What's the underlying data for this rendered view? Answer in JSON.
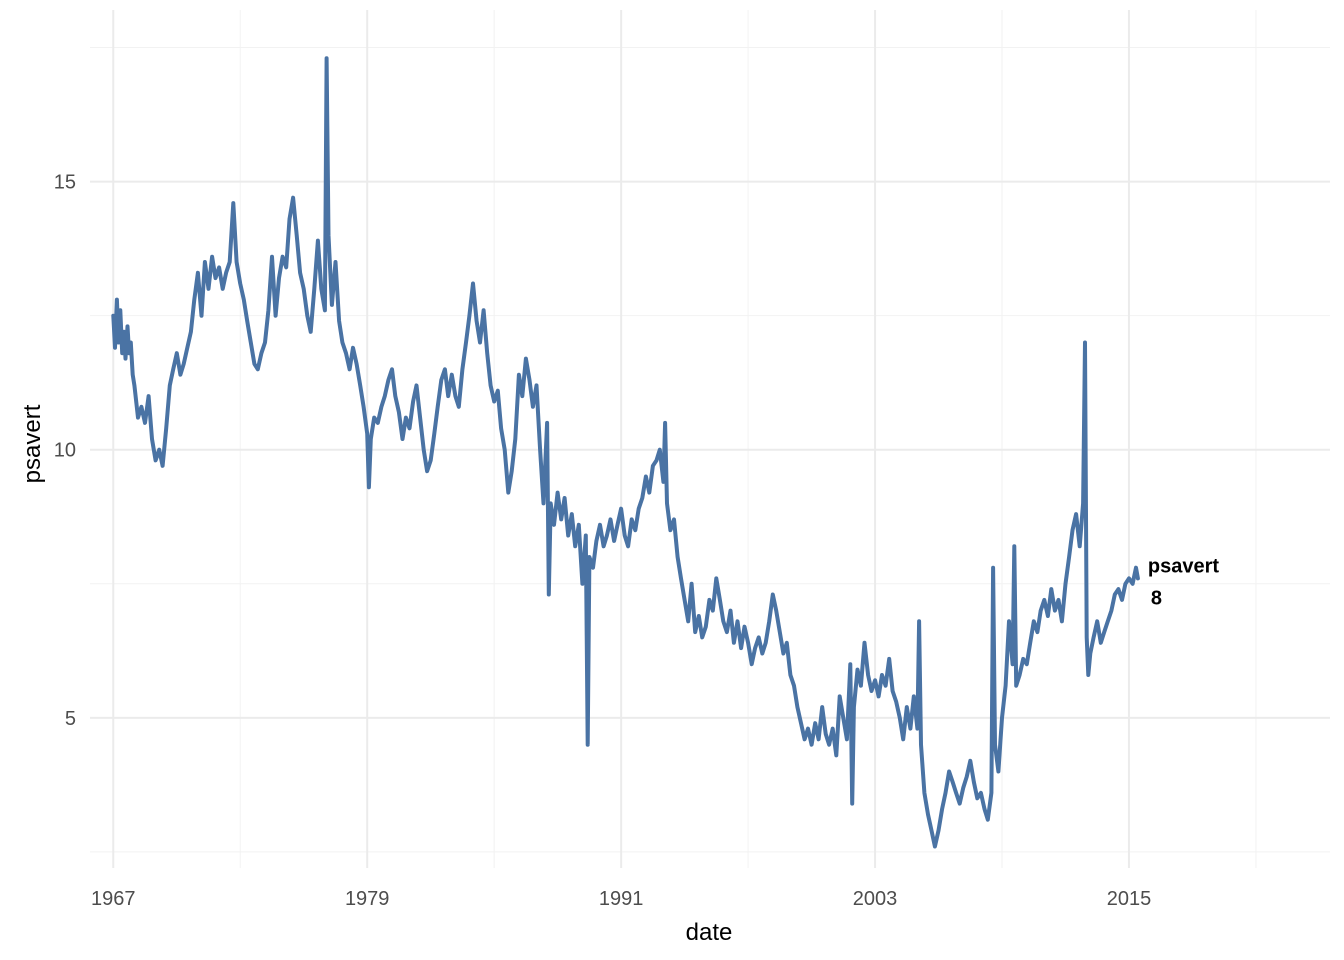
{
  "chart_data": {
    "type": "line",
    "xlabel": "date",
    "ylabel": "psavert",
    "x_ticks": [
      "1967",
      "1979",
      "1991",
      "2003",
      "2015"
    ],
    "y_ticks": [
      5,
      10,
      15
    ],
    "xlim": [
      1965.9,
      2024.5
    ],
    "ylim": [
      2.2,
      18.2
    ],
    "grid": true,
    "line_color": "#4a73a4",
    "series": [
      {
        "name": "psavert",
        "end_label": {
          "name": "psavert",
          "value": "8"
        },
        "points": [
          [
            1967.0,
            12.5
          ],
          [
            1967.08,
            11.9
          ],
          [
            1967.17,
            12.8
          ],
          [
            1967.25,
            12.0
          ],
          [
            1967.33,
            12.6
          ],
          [
            1967.42,
            11.8
          ],
          [
            1967.5,
            12.2
          ],
          [
            1967.58,
            11.7
          ],
          [
            1967.67,
            12.3
          ],
          [
            1967.75,
            11.8
          ],
          [
            1967.83,
            12.0
          ],
          [
            1967.92,
            11.4
          ],
          [
            1968.0,
            11.2
          ],
          [
            1968.17,
            10.6
          ],
          [
            1968.33,
            10.8
          ],
          [
            1968.5,
            10.5
          ],
          [
            1968.67,
            11.0
          ],
          [
            1968.83,
            10.2
          ],
          [
            1969.0,
            9.8
          ],
          [
            1969.17,
            10.0
          ],
          [
            1969.33,
            9.7
          ],
          [
            1969.5,
            10.4
          ],
          [
            1969.67,
            11.2
          ],
          [
            1969.83,
            11.5
          ],
          [
            1970.0,
            11.8
          ],
          [
            1970.17,
            11.4
          ],
          [
            1970.33,
            11.6
          ],
          [
            1970.5,
            11.9
          ],
          [
            1970.67,
            12.2
          ],
          [
            1970.83,
            12.8
          ],
          [
            1971.0,
            13.3
          ],
          [
            1971.17,
            12.5
          ],
          [
            1971.33,
            13.5
          ],
          [
            1971.5,
            13.0
          ],
          [
            1971.67,
            13.6
          ],
          [
            1971.83,
            13.2
          ],
          [
            1972.0,
            13.4
          ],
          [
            1972.17,
            13.0
          ],
          [
            1972.33,
            13.3
          ],
          [
            1972.5,
            13.5
          ],
          [
            1972.67,
            14.6
          ],
          [
            1972.83,
            13.5
          ],
          [
            1973.0,
            13.1
          ],
          [
            1973.17,
            12.8
          ],
          [
            1973.33,
            12.4
          ],
          [
            1973.5,
            12.0
          ],
          [
            1973.67,
            11.6
          ],
          [
            1973.83,
            11.5
          ],
          [
            1974.0,
            11.8
          ],
          [
            1974.17,
            12.0
          ],
          [
            1974.33,
            12.6
          ],
          [
            1974.5,
            13.6
          ],
          [
            1974.67,
            12.5
          ],
          [
            1974.83,
            13.2
          ],
          [
            1975.0,
            13.6
          ],
          [
            1975.17,
            13.4
          ],
          [
            1975.33,
            14.3
          ],
          [
            1975.5,
            14.7
          ],
          [
            1975.67,
            14.0
          ],
          [
            1975.83,
            13.3
          ],
          [
            1976.0,
            13.0
          ],
          [
            1976.17,
            12.5
          ],
          [
            1976.33,
            12.2
          ],
          [
            1976.5,
            13.0
          ],
          [
            1976.67,
            13.9
          ],
          [
            1976.83,
            13.0
          ],
          [
            1977.0,
            12.6
          ],
          [
            1977.08,
            17.3
          ],
          [
            1977.17,
            14.0
          ],
          [
            1977.33,
            12.7
          ],
          [
            1977.5,
            13.5
          ],
          [
            1977.67,
            12.4
          ],
          [
            1977.83,
            12.0
          ],
          [
            1978.0,
            11.8
          ],
          [
            1978.17,
            11.5
          ],
          [
            1978.33,
            11.9
          ],
          [
            1978.5,
            11.6
          ],
          [
            1978.67,
            11.2
          ],
          [
            1978.83,
            10.8
          ],
          [
            1979.0,
            10.3
          ],
          [
            1979.08,
            9.3
          ],
          [
            1979.17,
            10.2
          ],
          [
            1979.33,
            10.6
          ],
          [
            1979.5,
            10.5
          ],
          [
            1979.67,
            10.8
          ],
          [
            1979.83,
            11.0
          ],
          [
            1980.0,
            11.3
          ],
          [
            1980.17,
            11.5
          ],
          [
            1980.33,
            11.0
          ],
          [
            1980.5,
            10.7
          ],
          [
            1980.67,
            10.2
          ],
          [
            1980.83,
            10.6
          ],
          [
            1981.0,
            10.4
          ],
          [
            1981.17,
            10.9
          ],
          [
            1981.33,
            11.2
          ],
          [
            1981.5,
            10.6
          ],
          [
            1981.67,
            10.0
          ],
          [
            1981.83,
            9.6
          ],
          [
            1982.0,
            9.8
          ],
          [
            1982.17,
            10.3
          ],
          [
            1982.33,
            10.8
          ],
          [
            1982.5,
            11.3
          ],
          [
            1982.67,
            11.5
          ],
          [
            1982.83,
            11.0
          ],
          [
            1983.0,
            11.4
          ],
          [
            1983.17,
            11.0
          ],
          [
            1983.33,
            10.8
          ],
          [
            1983.5,
            11.5
          ],
          [
            1983.67,
            12.0
          ],
          [
            1983.83,
            12.5
          ],
          [
            1984.0,
            13.1
          ],
          [
            1984.17,
            12.4
          ],
          [
            1984.33,
            12.0
          ],
          [
            1984.5,
            12.6
          ],
          [
            1984.67,
            11.8
          ],
          [
            1984.83,
            11.2
          ],
          [
            1985.0,
            10.9
          ],
          [
            1985.17,
            11.1
          ],
          [
            1985.33,
            10.4
          ],
          [
            1985.5,
            10.0
          ],
          [
            1985.67,
            9.2
          ],
          [
            1985.83,
            9.6
          ],
          [
            1986.0,
            10.2
          ],
          [
            1986.17,
            11.4
          ],
          [
            1986.33,
            11.0
          ],
          [
            1986.5,
            11.7
          ],
          [
            1986.67,
            11.3
          ],
          [
            1986.83,
            10.8
          ],
          [
            1987.0,
            11.2
          ],
          [
            1987.17,
            10.0
          ],
          [
            1987.33,
            9.0
          ],
          [
            1987.5,
            10.5
          ],
          [
            1987.58,
            7.3
          ],
          [
            1987.67,
            9.0
          ],
          [
            1987.83,
            8.6
          ],
          [
            1988.0,
            9.2
          ],
          [
            1988.17,
            8.7
          ],
          [
            1988.33,
            9.1
          ],
          [
            1988.5,
            8.4
          ],
          [
            1988.67,
            8.8
          ],
          [
            1988.83,
            8.2
          ],
          [
            1989.0,
            8.6
          ],
          [
            1989.17,
            7.5
          ],
          [
            1989.33,
            8.4
          ],
          [
            1989.42,
            4.5
          ],
          [
            1989.5,
            8.0
          ],
          [
            1989.67,
            7.8
          ],
          [
            1989.83,
            8.3
          ],
          [
            1990.0,
            8.6
          ],
          [
            1990.17,
            8.2
          ],
          [
            1990.33,
            8.4
          ],
          [
            1990.5,
            8.7
          ],
          [
            1990.67,
            8.3
          ],
          [
            1990.83,
            8.6
          ],
          [
            1991.0,
            8.9
          ],
          [
            1991.17,
            8.4
          ],
          [
            1991.33,
            8.2
          ],
          [
            1991.5,
            8.7
          ],
          [
            1991.67,
            8.5
          ],
          [
            1991.83,
            8.9
          ],
          [
            1992.0,
            9.1
          ],
          [
            1992.17,
            9.5
          ],
          [
            1992.33,
            9.2
          ],
          [
            1992.5,
            9.7
          ],
          [
            1992.67,
            9.8
          ],
          [
            1992.83,
            10.0
          ],
          [
            1993.0,
            9.4
          ],
          [
            1993.08,
            10.5
          ],
          [
            1993.17,
            9.0
          ],
          [
            1993.33,
            8.5
          ],
          [
            1993.5,
            8.7
          ],
          [
            1993.67,
            8.0
          ],
          [
            1993.83,
            7.6
          ],
          [
            1994.0,
            7.2
          ],
          [
            1994.17,
            6.8
          ],
          [
            1994.33,
            7.5
          ],
          [
            1994.5,
            6.6
          ],
          [
            1994.67,
            6.9
          ],
          [
            1994.83,
            6.5
          ],
          [
            1995.0,
            6.7
          ],
          [
            1995.17,
            7.2
          ],
          [
            1995.33,
            7.0
          ],
          [
            1995.5,
            7.6
          ],
          [
            1995.67,
            7.2
          ],
          [
            1995.83,
            6.8
          ],
          [
            1996.0,
            6.6
          ],
          [
            1996.17,
            7.0
          ],
          [
            1996.33,
            6.4
          ],
          [
            1996.5,
            6.8
          ],
          [
            1996.67,
            6.3
          ],
          [
            1996.83,
            6.7
          ],
          [
            1997.0,
            6.4
          ],
          [
            1997.17,
            6.0
          ],
          [
            1997.33,
            6.3
          ],
          [
            1997.5,
            6.5
          ],
          [
            1997.67,
            6.2
          ],
          [
            1997.83,
            6.4
          ],
          [
            1998.0,
            6.8
          ],
          [
            1998.17,
            7.3
          ],
          [
            1998.33,
            7.0
          ],
          [
            1998.5,
            6.6
          ],
          [
            1998.67,
            6.2
          ],
          [
            1998.83,
            6.4
          ],
          [
            1999.0,
            5.8
          ],
          [
            1999.17,
            5.6
          ],
          [
            1999.33,
            5.2
          ],
          [
            1999.5,
            4.9
          ],
          [
            1999.67,
            4.6
          ],
          [
            1999.83,
            4.8
          ],
          [
            2000.0,
            4.5
          ],
          [
            2000.17,
            4.9
          ],
          [
            2000.33,
            4.6
          ],
          [
            2000.5,
            5.2
          ],
          [
            2000.67,
            4.7
          ],
          [
            2000.83,
            4.5
          ],
          [
            2001.0,
            4.8
          ],
          [
            2001.17,
            4.3
          ],
          [
            2001.33,
            5.4
          ],
          [
            2001.5,
            5.0
          ],
          [
            2001.67,
            4.6
          ],
          [
            2001.83,
            6.0
          ],
          [
            2001.92,
            3.4
          ],
          [
            2002.0,
            5.2
          ],
          [
            2002.17,
            5.9
          ],
          [
            2002.33,
            5.6
          ],
          [
            2002.5,
            6.4
          ],
          [
            2002.67,
            5.8
          ],
          [
            2002.83,
            5.5
          ],
          [
            2003.0,
            5.7
          ],
          [
            2003.17,
            5.4
          ],
          [
            2003.33,
            5.8
          ],
          [
            2003.5,
            5.6
          ],
          [
            2003.67,
            6.1
          ],
          [
            2003.83,
            5.5
          ],
          [
            2004.0,
            5.3
          ],
          [
            2004.17,
            5.0
          ],
          [
            2004.33,
            4.6
          ],
          [
            2004.5,
            5.2
          ],
          [
            2004.67,
            4.8
          ],
          [
            2004.83,
            5.4
          ],
          [
            2005.0,
            4.8
          ],
          [
            2005.08,
            6.8
          ],
          [
            2005.17,
            4.5
          ],
          [
            2005.33,
            3.6
          ],
          [
            2005.5,
            3.2
          ],
          [
            2005.67,
            2.9
          ],
          [
            2005.83,
            2.6
          ],
          [
            2006.0,
            2.9
          ],
          [
            2006.17,
            3.3
          ],
          [
            2006.33,
            3.6
          ],
          [
            2006.5,
            4.0
          ],
          [
            2006.67,
            3.8
          ],
          [
            2006.83,
            3.6
          ],
          [
            2007.0,
            3.4
          ],
          [
            2007.17,
            3.7
          ],
          [
            2007.33,
            3.9
          ],
          [
            2007.5,
            4.2
          ],
          [
            2007.67,
            3.8
          ],
          [
            2007.83,
            3.5
          ],
          [
            2008.0,
            3.6
          ],
          [
            2008.17,
            3.3
          ],
          [
            2008.33,
            3.1
          ],
          [
            2008.5,
            3.6
          ],
          [
            2008.58,
            7.8
          ],
          [
            2008.67,
            4.5
          ],
          [
            2008.83,
            4.0
          ],
          [
            2009.0,
            5.0
          ],
          [
            2009.17,
            5.6
          ],
          [
            2009.33,
            6.8
          ],
          [
            2009.5,
            6.0
          ],
          [
            2009.58,
            8.2
          ],
          [
            2009.67,
            5.6
          ],
          [
            2009.83,
            5.8
          ],
          [
            2010.0,
            6.1
          ],
          [
            2010.17,
            6.0
          ],
          [
            2010.33,
            6.4
          ],
          [
            2010.5,
            6.8
          ],
          [
            2010.67,
            6.6
          ],
          [
            2010.83,
            7.0
          ],
          [
            2011.0,
            7.2
          ],
          [
            2011.17,
            6.9
          ],
          [
            2011.33,
            7.4
          ],
          [
            2011.5,
            7.0
          ],
          [
            2011.67,
            7.2
          ],
          [
            2011.83,
            6.8
          ],
          [
            2012.0,
            7.5
          ],
          [
            2012.17,
            8.0
          ],
          [
            2012.33,
            8.5
          ],
          [
            2012.5,
            8.8
          ],
          [
            2012.67,
            8.2
          ],
          [
            2012.83,
            9.0
          ],
          [
            2012.92,
            12.0
          ],
          [
            2013.0,
            6.5
          ],
          [
            2013.08,
            5.8
          ],
          [
            2013.17,
            6.2
          ],
          [
            2013.33,
            6.5
          ],
          [
            2013.5,
            6.8
          ],
          [
            2013.67,
            6.4
          ],
          [
            2013.83,
            6.6
          ],
          [
            2014.0,
            6.8
          ],
          [
            2014.17,
            7.0
          ],
          [
            2014.33,
            7.3
          ],
          [
            2014.5,
            7.4
          ],
          [
            2014.67,
            7.2
          ],
          [
            2014.83,
            7.5
          ],
          [
            2015.0,
            7.6
          ],
          [
            2015.17,
            7.5
          ],
          [
            2015.33,
            7.8
          ],
          [
            2015.42,
            7.6
          ]
        ]
      }
    ]
  }
}
